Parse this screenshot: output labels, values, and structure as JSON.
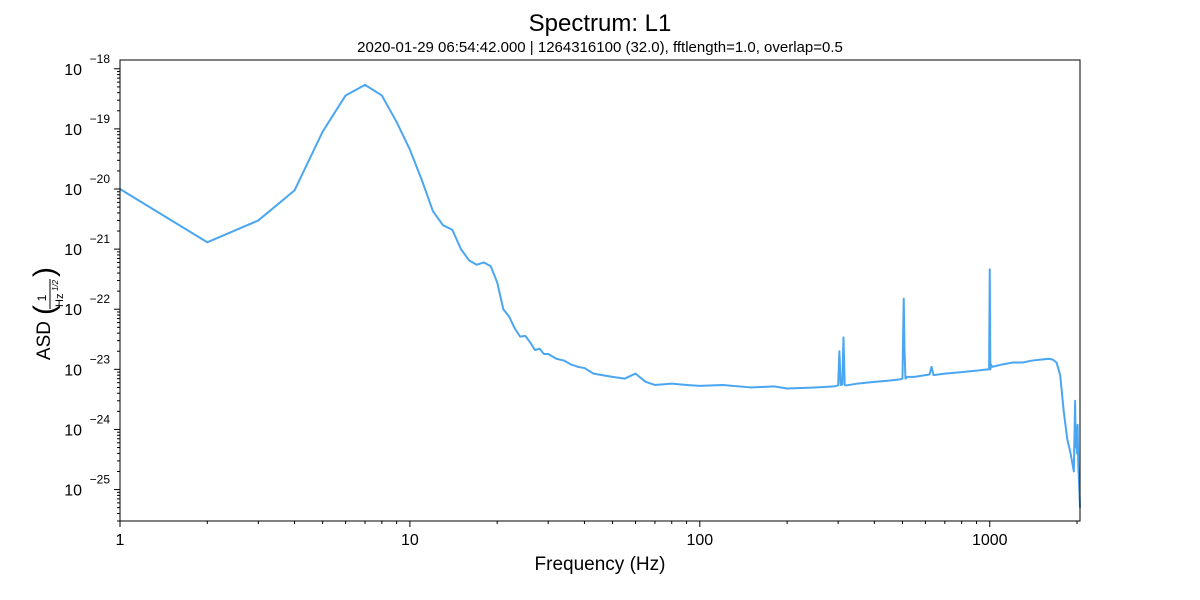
{
  "chart_data": {
    "type": "line",
    "title": "Spectrum: L1",
    "subtitle": "2020-01-29 06:54:42.000 | 1264316100 (32.0), fftlength=1.0, overlap=0.5",
    "xlabel": "Frequency (Hz)",
    "ylabel": "ASD",
    "ylabel_unit": {
      "numerator": "1",
      "denominator_base": "Hz",
      "denominator_exponent": "1/2"
    },
    "xscale": "log",
    "yscale": "log",
    "xlim": [
      1,
      2048
    ],
    "ylim": [
      3e-26,
      1.4e-18
    ],
    "grid": false,
    "legend": "none",
    "x_ticks": [
      {
        "value": 1,
        "label": "1"
      },
      {
        "value": 10,
        "label": "10"
      },
      {
        "value": 100,
        "label": "100"
      },
      {
        "value": 1000,
        "label": "1000"
      }
    ],
    "y_ticks": [
      {
        "value": 1e-25,
        "mantissa": "10",
        "exponent": "−25"
      },
      {
        "value": 1e-24,
        "mantissa": "10",
        "exponent": "−24"
      },
      {
        "value": 1e-23,
        "mantissa": "10",
        "exponent": "−23"
      },
      {
        "value": 1e-22,
        "mantissa": "10",
        "exponent": "−22"
      },
      {
        "value": 1e-21,
        "mantissa": "10",
        "exponent": "−21"
      },
      {
        "value": 1e-20,
        "mantissa": "10",
        "exponent": "−20"
      },
      {
        "value": 1e-19,
        "mantissa": "10",
        "exponent": "−19"
      },
      {
        "value": 1e-18,
        "mantissa": "10",
        "exponent": "−18"
      }
    ],
    "line_color": "#4ba6f2",
    "series": [
      {
        "x": [
          1,
          2,
          3,
          4,
          5,
          6,
          7,
          8,
          9,
          10,
          11,
          12,
          13,
          14,
          15,
          16,
          17,
          18,
          19,
          20,
          21,
          22,
          23,
          24,
          25,
          26,
          27,
          28,
          29,
          30,
          32,
          34,
          36,
          38,
          40,
          43,
          46,
          50,
          55,
          60,
          65,
          70,
          80,
          90,
          100,
          120,
          150,
          180,
          200,
          250,
          290,
          300,
          303,
          306,
          310,
          313,
          316,
          320,
          350,
          400,
          450,
          490,
          500,
          505,
          508,
          512,
          520,
          550,
          600,
          620,
          630,
          640,
          700,
          800,
          900,
          980,
          995,
          1000,
          1005,
          1010,
          1020,
          1100,
          1200,
          1300,
          1400,
          1500,
          1600,
          1650,
          1700,
          1750,
          1800,
          1850,
          1900,
          1950,
          1970,
          1980,
          1990,
          2000,
          2010,
          2020,
          2030,
          2048
        ],
        "values": [
          1e-20,
          1.3e-21,
          3e-21,
          9.5e-21,
          9e-20,
          3.6e-19,
          5.4e-19,
          3.6e-19,
          1.3e-19,
          4.5e-20,
          1.4e-20,
          4.3e-21,
          2.5e-21,
          2.1e-21,
          1e-21,
          6.5e-22,
          5.5e-22,
          6e-22,
          5.2e-22,
          2.8e-22,
          1e-22,
          7.5e-23,
          4.8e-23,
          3.5e-23,
          3.6e-23,
          2.8e-23,
          2.1e-23,
          2.2e-23,
          1.8e-23,
          1.8e-23,
          1.5e-23,
          1.4e-23,
          1.2e-23,
          1.1e-23,
          1.05e-23,
          8.5e-24,
          8e-24,
          7.5e-24,
          7e-24,
          8.5e-24,
          6.2e-24,
          5.5e-24,
          5.8e-24,
          5.5e-24,
          5.3e-24,
          5.5e-24,
          5e-24,
          5.2e-24,
          4.8e-24,
          5e-24,
          5.2e-24,
          5.4e-24,
          2e-23,
          5.5e-24,
          5.6e-24,
          3.4e-23,
          5.5e-24,
          5.4e-24,
          5.8e-24,
          6.2e-24,
          6.5e-24,
          6.8e-24,
          7e-24,
          1.5e-22,
          2.2e-23,
          7e-24,
          7.5e-24,
          7.5e-24,
          8e-24,
          8.2e-24,
          1.1e-23,
          8e-24,
          8.5e-24,
          9e-24,
          9.5e-24,
          1e-23,
          1e-23,
          4.6e-22,
          1e-23,
          1.2e-23,
          1.1e-23,
          1.2e-23,
          1.3e-23,
          1.3e-23,
          1.4e-23,
          1.45e-23,
          1.5e-23,
          1.45e-23,
          1.3e-23,
          8e-24,
          2e-24,
          7e-25,
          4e-25,
          2e-25,
          3e-24,
          5e-25,
          1.1e-24,
          4e-25,
          1.2e-24,
          2.5e-25,
          1.5e-25,
          5e-26
        ]
      }
    ]
  }
}
